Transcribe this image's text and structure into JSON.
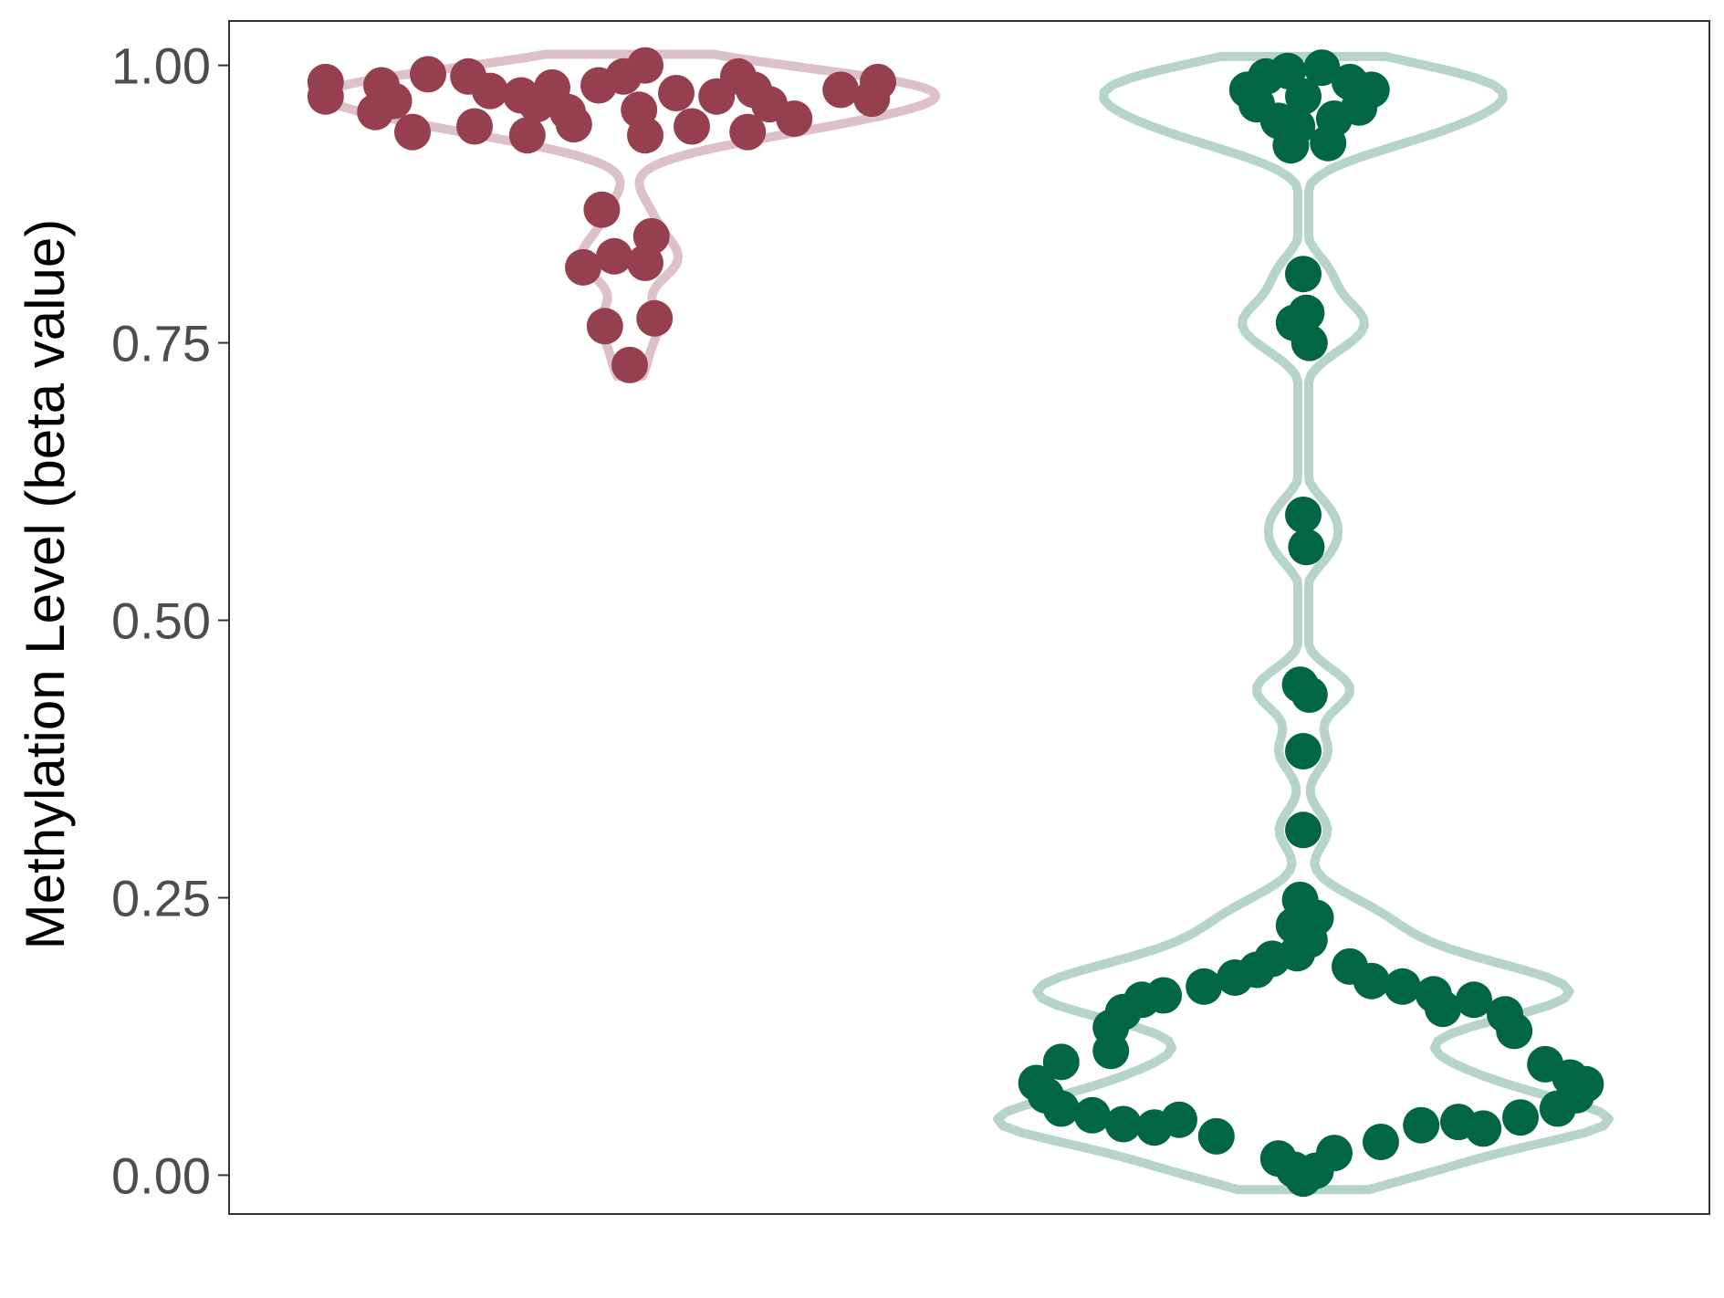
{
  "chart_data": {
    "type": "scatter",
    "subtype": "violin-beeswarm",
    "title": "",
    "xlabel": "",
    "ylabel": "Methylation Level (beta value)",
    "ylim": [
      -0.035,
      1.04
    ],
    "yticks": [
      0.0,
      0.25,
      0.5,
      0.75,
      1.0
    ],
    "ytick_labels": [
      "0.00",
      "0.25",
      "0.50",
      "0.75",
      "1.00"
    ],
    "grid": false,
    "legend": "none",
    "series": [
      {
        "group": 1,
        "color": "#96404f",
        "violin_color": "#dcc2c8",
        "points": [
          {
            "x": -0.98,
            "y": 0.985
          },
          {
            "x": -0.98,
            "y": 0.972
          },
          {
            "x": -0.82,
            "y": 0.958
          },
          {
            "x": -0.8,
            "y": 0.982
          },
          {
            "x": -0.76,
            "y": 0.968
          },
          {
            "x": -0.65,
            "y": 0.992
          },
          {
            "x": -0.52,
            "y": 0.99
          },
          {
            "x": -0.45,
            "y": 0.977
          },
          {
            "x": -0.5,
            "y": 0.945
          },
          {
            "x": -0.7,
            "y": 0.94
          },
          {
            "x": -0.35,
            "y": 0.973
          },
          {
            "x": -0.3,
            "y": 0.965
          },
          {
            "x": -0.25,
            "y": 0.98
          },
          {
            "x": -0.2,
            "y": 0.958
          },
          {
            "x": -0.33,
            "y": 0.937
          },
          {
            "x": -0.18,
            "y": 0.947
          },
          {
            "x": -0.1,
            "y": 0.982
          },
          {
            "x": -0.02,
            "y": 0.99
          },
          {
            "x": 0.05,
            "y": 1.0
          },
          {
            "x": 0.03,
            "y": 0.96
          },
          {
            "x": 0.05,
            "y": 0.937
          },
          {
            "x": 0.15,
            "y": 0.975
          },
          {
            "x": 0.2,
            "y": 0.945
          },
          {
            "x": 0.28,
            "y": 0.972
          },
          {
            "x": 0.35,
            "y": 0.99
          },
          {
            "x": 0.38,
            "y": 0.94
          },
          {
            "x": 0.4,
            "y": 0.978
          },
          {
            "x": 0.45,
            "y": 0.965
          },
          {
            "x": 0.53,
            "y": 0.952
          },
          {
            "x": 0.68,
            "y": 0.978
          },
          {
            "x": 0.78,
            "y": 0.97
          },
          {
            "x": 0.8,
            "y": 0.985
          },
          {
            "x": -0.09,
            "y": 0.87
          },
          {
            "x": 0.07,
            "y": 0.846
          },
          {
            "x": -0.05,
            "y": 0.828
          },
          {
            "x": -0.15,
            "y": 0.818
          },
          {
            "x": 0.05,
            "y": 0.822
          },
          {
            "x": -0.08,
            "y": 0.765
          },
          {
            "x": 0.08,
            "y": 0.772
          },
          {
            "x": 0.0,
            "y": 0.73
          }
        ]
      },
      {
        "group": 2,
        "color": "#006643",
        "violin_color": "#b7d4cc",
        "points": [
          {
            "x": -0.18,
            "y": 0.978
          },
          {
            "x": -0.12,
            "y": 0.99
          },
          {
            "x": -0.05,
            "y": 0.995
          },
          {
            "x": 0.06,
            "y": 0.998
          },
          {
            "x": 0.15,
            "y": 0.985
          },
          {
            "x": 0.22,
            "y": 0.978
          },
          {
            "x": -0.15,
            "y": 0.965
          },
          {
            "x": 0.18,
            "y": 0.962
          },
          {
            "x": -0.08,
            "y": 0.95
          },
          {
            "x": 0.1,
            "y": 0.952
          },
          {
            "x": -0.04,
            "y": 0.928
          },
          {
            "x": 0.08,
            "y": 0.93
          },
          {
            "x": 0.0,
            "y": 0.972
          },
          {
            "x": -0.02,
            "y": 0.945
          },
          {
            "x": 0.0,
            "y": 0.812
          },
          {
            "x": 0.01,
            "y": 0.777
          },
          {
            "x": -0.03,
            "y": 0.768
          },
          {
            "x": 0.02,
            "y": 0.75
          },
          {
            "x": 0.0,
            "y": 0.595
          },
          {
            "x": 0.01,
            "y": 0.566
          },
          {
            "x": -0.01,
            "y": 0.442
          },
          {
            "x": 0.02,
            "y": 0.433
          },
          {
            "x": 0.0,
            "y": 0.382
          },
          {
            "x": 0.0,
            "y": 0.311
          },
          {
            "x": -0.01,
            "y": 0.248
          },
          {
            "x": 0.04,
            "y": 0.232
          },
          {
            "x": -0.03,
            "y": 0.225
          },
          {
            "x": 0.02,
            "y": 0.212
          },
          {
            "x": -0.02,
            "y": 0.2
          },
          {
            "x": -0.86,
            "y": 0.083
          },
          {
            "x": -0.83,
            "y": 0.072
          },
          {
            "x": -0.78,
            "y": 0.102
          },
          {
            "x": -0.78,
            "y": 0.06
          },
          {
            "x": -0.68,
            "y": 0.054
          },
          {
            "x": -0.62,
            "y": 0.133
          },
          {
            "x": -0.62,
            "y": 0.112
          },
          {
            "x": -0.58,
            "y": 0.147
          },
          {
            "x": -0.58,
            "y": 0.046
          },
          {
            "x": -0.52,
            "y": 0.158
          },
          {
            "x": -0.48,
            "y": 0.043
          },
          {
            "x": -0.45,
            "y": 0.162
          },
          {
            "x": -0.4,
            "y": 0.05
          },
          {
            "x": -0.32,
            "y": 0.17
          },
          {
            "x": -0.28,
            "y": 0.035
          },
          {
            "x": -0.22,
            "y": 0.178
          },
          {
            "x": -0.15,
            "y": 0.185
          },
          {
            "x": -0.1,
            "y": 0.195
          },
          {
            "x": -0.08,
            "y": 0.015
          },
          {
            "x": -0.03,
            "y": 0.005
          },
          {
            "x": 0.0,
            "y": -0.003
          },
          {
            "x": 0.04,
            "y": 0.004
          },
          {
            "x": 0.1,
            "y": 0.02
          },
          {
            "x": 0.15,
            "y": 0.188
          },
          {
            "x": 0.22,
            "y": 0.175
          },
          {
            "x": 0.25,
            "y": 0.03
          },
          {
            "x": 0.32,
            "y": 0.17
          },
          {
            "x": 0.38,
            "y": 0.045
          },
          {
            "x": 0.42,
            "y": 0.163
          },
          {
            "x": 0.45,
            "y": 0.15
          },
          {
            "x": 0.5,
            "y": 0.048
          },
          {
            "x": 0.55,
            "y": 0.158
          },
          {
            "x": 0.58,
            "y": 0.042
          },
          {
            "x": 0.65,
            "y": 0.145
          },
          {
            "x": 0.68,
            "y": 0.13
          },
          {
            "x": 0.7,
            "y": 0.052
          },
          {
            "x": 0.78,
            "y": 0.1
          },
          {
            "x": 0.82,
            "y": 0.06
          },
          {
            "x": 0.86,
            "y": 0.088
          },
          {
            "x": 0.88,
            "y": 0.072
          },
          {
            "x": 0.91,
            "y": 0.082
          }
        ]
      }
    ]
  }
}
